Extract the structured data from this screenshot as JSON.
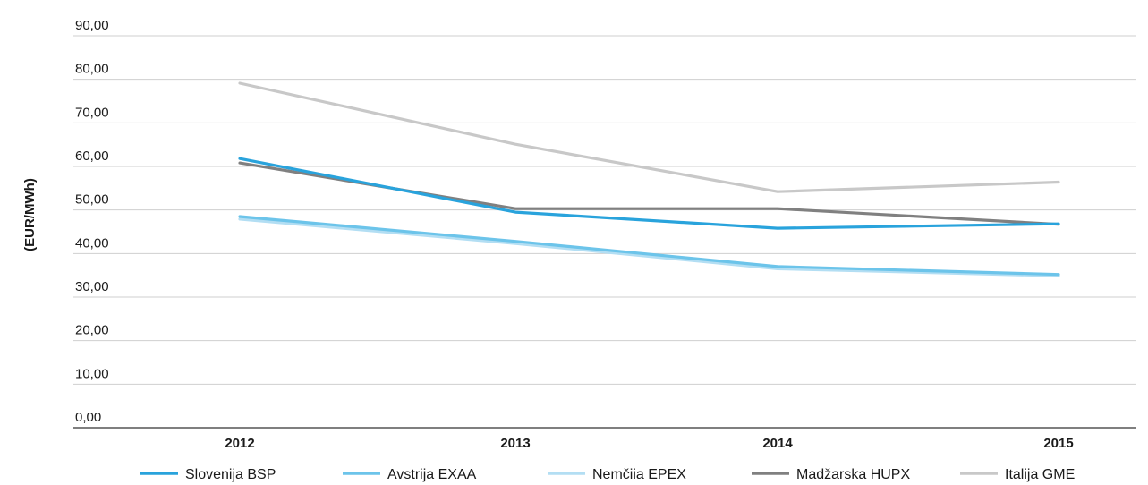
{
  "chart_data": {
    "type": "line",
    "title": "",
    "xlabel": "",
    "ylabel": "(EUR/MWh)",
    "categories": [
      "2012",
      "2013",
      "2014",
      "2015"
    ],
    "ylim": [
      0,
      90
    ],
    "y_ticks": [
      "0,00",
      "10,00",
      "20,00",
      "30,00",
      "40,00",
      "50,00",
      "60,00",
      "70,00",
      "80,00",
      "90,00"
    ],
    "grid": true,
    "legend": "bottom",
    "series": [
      {
        "name": "Slovenija BSP",
        "color": "#29a3dc",
        "values": [
          61.8,
          49.5,
          45.8,
          46.8
        ]
      },
      {
        "name": "Avstrija EXAA",
        "color": "#6cc4ea",
        "values": [
          48.5,
          42.8,
          37.0,
          35.2
        ]
      },
      {
        "name": "Nemčiia EPEX",
        "color": "#b3def3",
        "values": [
          47.9,
          42.3,
          36.5,
          34.9
        ]
      },
      {
        "name": "Madžarska HUPX",
        "color": "#808080",
        "values": [
          60.8,
          50.3,
          50.3,
          46.7
        ]
      },
      {
        "name": "Italija GME",
        "color": "#c8c8c8",
        "values": [
          79.1,
          65.1,
          54.2,
          56.4
        ]
      }
    ]
  }
}
